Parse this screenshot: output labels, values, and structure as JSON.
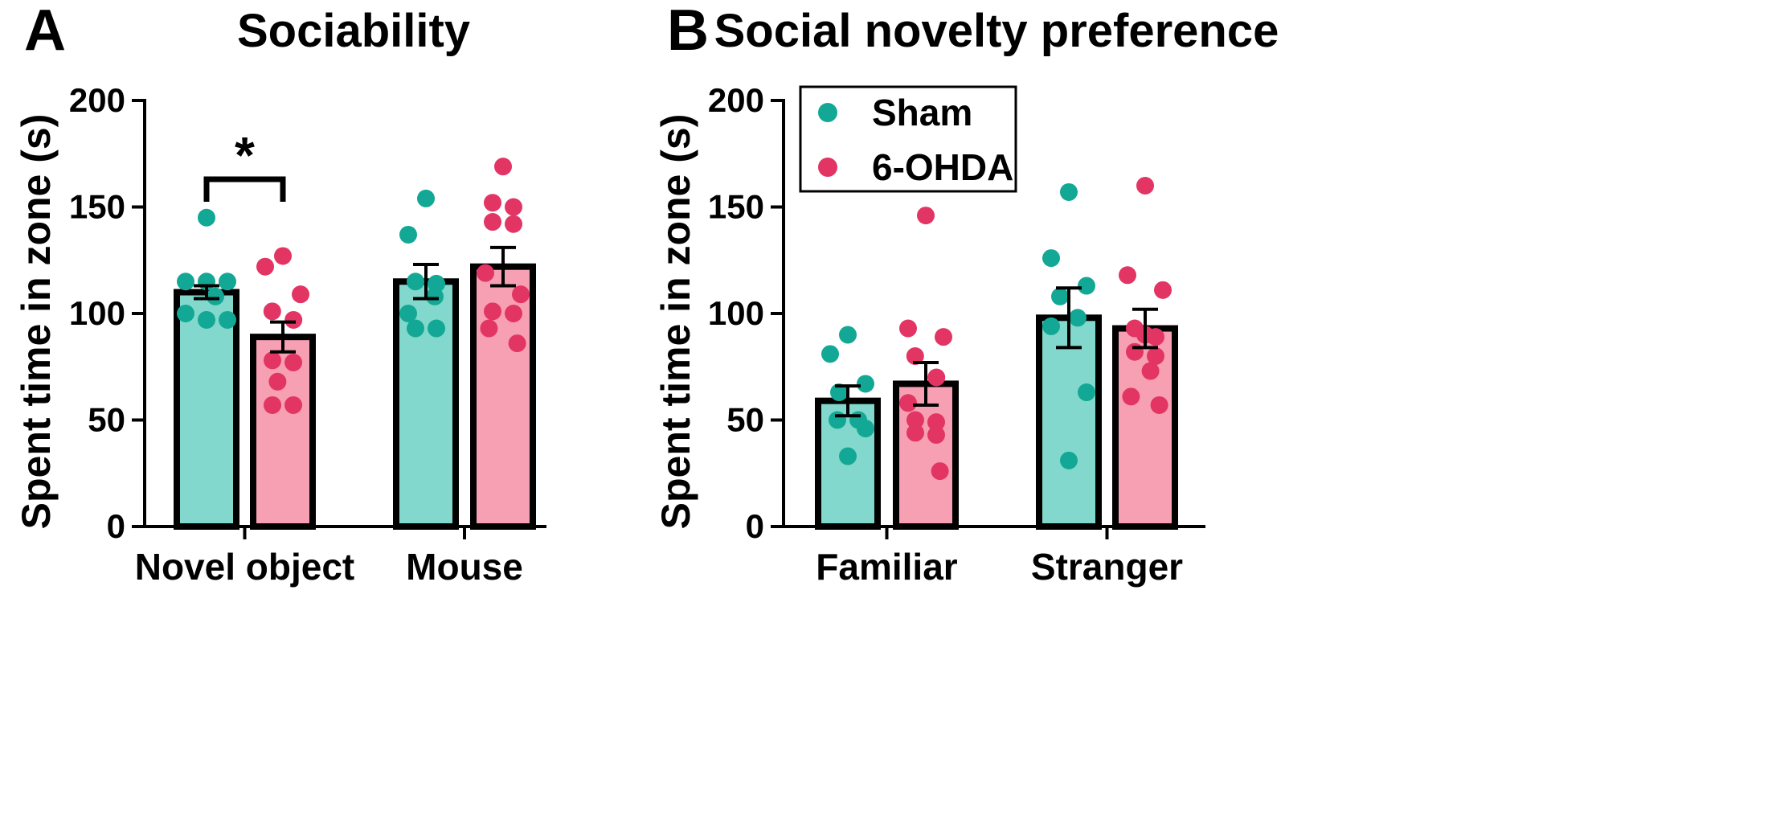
{
  "colors": {
    "sham_bar": "#82d8cc",
    "sham_dot": "#13a895",
    "ohda_bar": "#f7a0b4",
    "ohda_dot": "#e23564",
    "axis": "#000000"
  },
  "legend": {
    "items": [
      {
        "label": "Sham",
        "color": "#13a895"
      },
      {
        "label": "6-OHDA",
        "color": "#e23564"
      }
    ]
  },
  "chart_data": [
    {
      "panel_letter": "A",
      "type": "bar",
      "title": "Sociability",
      "xlabel": "",
      "ylabel": "Spent time in zone (s)",
      "ylim": [
        0,
        200
      ],
      "yticks": [
        "0",
        "50",
        "100",
        "150",
        "200"
      ],
      "categories": [
        "Novel object",
        "Mouse"
      ],
      "series": [
        {
          "name": "Sham",
          "values": [
            110,
            115
          ],
          "sem": [
            3,
            8
          ],
          "points": [
            [
              145,
              115,
              115,
              115,
              108,
              100,
              97,
              97
            ],
            [
              154,
              137,
              115,
              114,
              108,
              100,
              93,
              93
            ]
          ]
        },
        {
          "name": "6-OHDA",
          "values": [
            89,
            122
          ],
          "sem": [
            7,
            9
          ],
          "points": [
            [
              127,
              122,
              109,
              101,
              97,
              78,
              77,
              68,
              57,
              57
            ],
            [
              169,
              152,
              150,
              143,
              142,
              119,
              109,
              101,
              100,
              93,
              86
            ]
          ]
        }
      ],
      "annotations": [
        {
          "text": "*",
          "between": [
            "Novel object: Sham",
            "Novel object: 6-OHDA"
          ]
        }
      ]
    },
    {
      "panel_letter": "B",
      "type": "bar",
      "title": "Social novelty preference",
      "xlabel": "",
      "ylabel": "Spent time in zone (s)",
      "ylim": [
        0,
        200
      ],
      "yticks": [
        "0",
        "50",
        "100",
        "150",
        "200"
      ],
      "categories": [
        "Familiar",
        "Stranger"
      ],
      "series": [
        {
          "name": "Sham",
          "values": [
            59,
            98
          ],
          "sem": [
            7,
            14
          ],
          "points": [
            [
              90,
              81,
              67,
              63,
              50,
              50,
              46,
              33
            ],
            [
              157,
              126,
              113,
              108,
              98,
              94,
              63,
              31
            ]
          ]
        },
        {
          "name": "6-OHDA",
          "values": [
            67,
            93
          ],
          "sem": [
            10,
            9
          ],
          "points": [
            [
              146,
              93,
              89,
              80,
              70,
              58,
              50,
              49,
              44,
              43,
              26
            ],
            [
              160,
              118,
              111,
              93,
              90,
              89,
              82,
              80,
              73,
              61,
              57
            ]
          ]
        }
      ],
      "legend_position": "top-left"
    }
  ]
}
